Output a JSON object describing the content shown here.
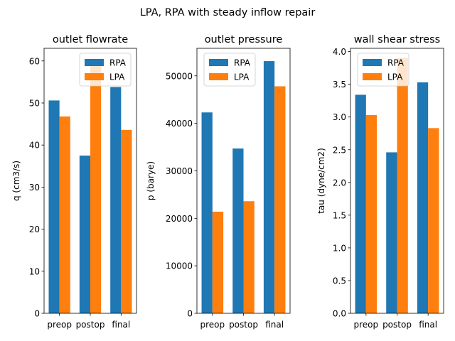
{
  "figure": {
    "title": "LPA, RPA with steady inflow repair"
  },
  "colors": {
    "RPA": "#1f77b4",
    "LPA": "#ff7f0e"
  },
  "chart_data": [
    {
      "type": "bar",
      "title": "outlet flowrate",
      "ylabel": "q (cm3/s)",
      "xlabel": "",
      "categories": [
        "preop",
        "postop",
        "final"
      ],
      "series": [
        {
          "name": "RPA",
          "values": [
            50.6,
            37.5,
            53.8
          ]
        },
        {
          "name": "LPA",
          "values": [
            46.8,
            60.0,
            43.6
          ]
        }
      ],
      "ylim": [
        0,
        63
      ],
      "yticks": [
        0,
        10,
        20,
        30,
        40,
        50,
        60
      ],
      "ytick_labels": [
        "0",
        "10",
        "20",
        "30",
        "40",
        "50",
        "60"
      ],
      "legend": "upper right"
    },
    {
      "type": "bar",
      "title": "outlet pressure",
      "ylabel": "p (barye)",
      "xlabel": "",
      "categories": [
        "preop",
        "postop",
        "final"
      ],
      "series": [
        {
          "name": "RPA",
          "values": [
            42300,
            34700,
            53100
          ]
        },
        {
          "name": "LPA",
          "values": [
            21400,
            23600,
            47800
          ]
        }
      ],
      "ylim": [
        0,
        55800
      ],
      "yticks": [
        0,
        10000,
        20000,
        30000,
        40000,
        50000
      ],
      "ytick_labels": [
        "0",
        "10000",
        "20000",
        "30000",
        "40000",
        "50000"
      ],
      "legend": "upper left"
    },
    {
      "type": "bar",
      "title": "wall shear stress",
      "ylabel": "tau (dyne/cm2)",
      "xlabel": "",
      "categories": [
        "preop",
        "postop",
        "final"
      ],
      "series": [
        {
          "name": "RPA",
          "values": [
            3.34,
            2.46,
            3.53
          ]
        },
        {
          "name": "LPA",
          "values": [
            3.03,
            3.9,
            2.83
          ]
        }
      ],
      "ylim": [
        0,
        4.05
      ],
      "yticks": [
        0,
        0.5,
        1.0,
        1.5,
        2.0,
        2.5,
        3.0,
        3.5,
        4.0
      ],
      "ytick_labels": [
        "0.0",
        "0.5",
        "1.0",
        "1.5",
        "2.0",
        "2.5",
        "3.0",
        "3.5",
        "4.0"
      ],
      "legend": "upper left"
    }
  ]
}
